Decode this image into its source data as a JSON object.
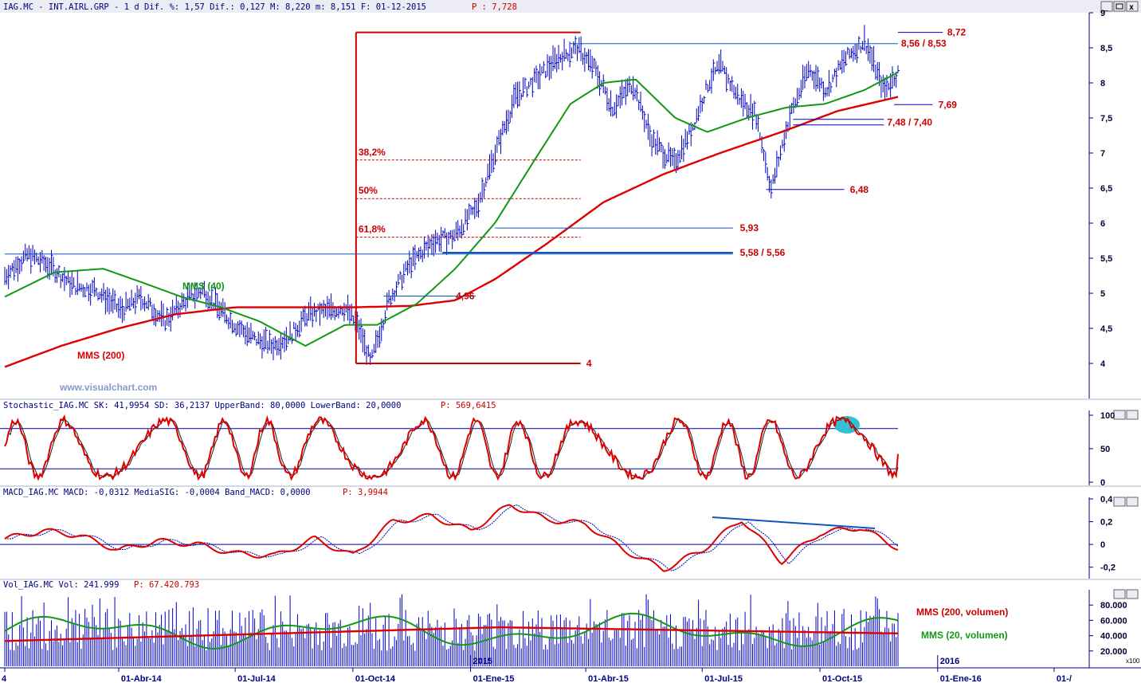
{
  "header": {
    "main": "IAG.MC - INT.AIRL.GRP - 1 d Dif. %: 1,57 Dif.: 0,127 M: 8,220 m: 8,151 F: 01-12-2015",
    "main_price": "P : 7,728",
    "stoch": "Stochastic_IAG.MC SK: 41,9954 SD: 36,2137 UpperBand: 80,0000 LowerBand: 20,0000",
    "stoch_p": "P: 569,6415",
    "macd": "MACD_IAG.MC MACD: -0,0312 MediaSIG: -0,0004 Band_MACD: 0,0000",
    "macd_p": "P: 3,9944",
    "vol": "Vol_IAG.MC Vol: 241.999",
    "vol_p": "P: 67.420.793"
  },
  "watermark": "www.visualchart.com",
  "colors": {
    "price": "#0000cc",
    "mms200": "#dd0000",
    "mms40": "#119911",
    "annotation": "#cc0000",
    "axis_text": "#000033",
    "blue_line": "#1155bb"
  },
  "chart_data": [
    {
      "type": "line",
      "title": "IAG.MC - INT.AIRL.GRP",
      "ylim": [
        3.5,
        9
      ],
      "yticks": [
        "4",
        "4,5",
        "5",
        "5,5",
        "6",
        "6,5",
        "7",
        "7,5",
        "8",
        "8,5",
        "9"
      ],
      "series": [
        {
          "name": "IAG.MC",
          "style": "ohlc-bars",
          "x": [
            "2014-01-02",
            "2014-01-20",
            "2014-02-05",
            "2014-02-25",
            "2014-03-14",
            "2014-04-03",
            "2014-04-18",
            "2014-05-07",
            "2014-05-26",
            "2014-06-06",
            "2014-06-20",
            "2014-07-01",
            "2014-07-16",
            "2014-07-30",
            "2014-08-13",
            "2014-08-27",
            "2014-09-10",
            "2014-09-25",
            "2014-10-06",
            "2014-10-15",
            "2014-10-29",
            "2014-11-14",
            "2014-12-03",
            "2014-12-18",
            "2015-01-05",
            "2015-01-20",
            "2015-02-05",
            "2015-02-24",
            "2015-03-10",
            "2015-03-25",
            "2015-04-08",
            "2015-04-22",
            "2015-05-08",
            "2015-05-22",
            "2015-06-09",
            "2015-06-23",
            "2015-07-06",
            "2015-07-15",
            "2015-07-29",
            "2015-08-12",
            "2015-08-24",
            "2015-09-07",
            "2015-09-22",
            "2015-10-06",
            "2015-10-21",
            "2015-11-05",
            "2015-11-20",
            "2015-12-01"
          ],
          "values": [
            5.25,
            5.55,
            5.4,
            5.1,
            5.05,
            4.75,
            4.95,
            4.6,
            4.95,
            5.05,
            4.75,
            4.55,
            4.35,
            4.25,
            4.4,
            4.7,
            4.75,
            4.8,
            4.5,
            4.0,
            4.9,
            5.4,
            5.75,
            5.8,
            6.2,
            7.0,
            7.8,
            8.1,
            8.35,
            8.5,
            8.2,
            7.65,
            8.0,
            7.2,
            6.85,
            7.35,
            8.0,
            8.25,
            7.8,
            7.55,
            6.48,
            7.5,
            8.2,
            7.9,
            8.35,
            8.6,
            7.9,
            8.15
          ]
        },
        {
          "name": "MMS (40)",
          "x": [
            "2014-01-02",
            "2014-02-10",
            "2014-03-20",
            "2014-04-20",
            "2014-05-20",
            "2014-06-20",
            "2014-07-20",
            "2014-08-25",
            "2014-09-25",
            "2014-10-20",
            "2014-11-20",
            "2014-12-20",
            "2015-01-20",
            "2015-02-20",
            "2015-03-20",
            "2015-04-15",
            "2015-05-10",
            "2015-06-10",
            "2015-07-05",
            "2015-08-05",
            "2015-09-05",
            "2015-10-05",
            "2015-11-05",
            "2015-12-01"
          ],
          "values": [
            4.95,
            5.3,
            5.35,
            5.15,
            4.95,
            4.8,
            4.6,
            4.25,
            4.55,
            4.55,
            4.85,
            5.35,
            6.0,
            6.9,
            7.7,
            8.0,
            8.05,
            7.5,
            7.3,
            7.5,
            7.65,
            7.7,
            7.9,
            8.15
          ]
        },
        {
          "name": "MMS (200)",
          "x": [
            "2014-01-02",
            "2014-02-15",
            "2014-04-01",
            "2014-05-15",
            "2014-07-01",
            "2014-08-15",
            "2014-10-01",
            "2014-11-15",
            "2014-12-20",
            "2015-01-20",
            "2015-03-01",
            "2015-04-15",
            "2015-06-01",
            "2015-07-15",
            "2015-09-01",
            "2015-10-15",
            "2015-12-01"
          ],
          "values": [
            3.95,
            4.25,
            4.5,
            4.7,
            4.8,
            4.8,
            4.8,
            4.82,
            4.9,
            5.2,
            5.7,
            6.3,
            6.7,
            7.0,
            7.3,
            7.6,
            7.8
          ]
        }
      ],
      "fibonacci": {
        "range_high_label": "",
        "range_low_label": "4",
        "levels": [
          {
            "label": "38,2%",
            "value": 6.9
          },
          {
            "label": "50%",
            "value": 6.35
          },
          {
            "label": "61,8%",
            "value": 5.8
          }
        ]
      },
      "annotations": [
        {
          "text": "8,72",
          "value": 8.72
        },
        {
          "text": "8,56 / 8,53",
          "value": 8.56
        },
        {
          "text": "7,69",
          "value": 7.69
        },
        {
          "text": "7,48 / 7,40",
          "value": 7.48
        },
        {
          "text": "6,48",
          "value": 6.48
        },
        {
          "text": "5,93",
          "value": 5.93
        },
        {
          "text": "5,58 / 5,56",
          "value": 5.58
        },
        {
          "text": "4,96",
          "value": 4.96
        },
        {
          "text": "4",
          "value": 4.0
        }
      ],
      "labels": {
        "mms40": "MMS (40)",
        "mms200": "MMS (200)"
      }
    },
    {
      "type": "line",
      "title": "Stochastic_IAG.MC",
      "ylim": [
        0,
        100
      ],
      "yticks": [
        "0",
        "50",
        "100"
      ],
      "bands": [
        20,
        80
      ],
      "series": [
        {
          "name": "SK",
          "last": 41.9954
        },
        {
          "name": "SD",
          "last": 36.2137
        }
      ]
    },
    {
      "type": "line",
      "title": "MACD_IAG.MC",
      "ylim": [
        -0.3,
        0.4
      ],
      "yticks": [
        "-0,2",
        "0",
        "0,2",
        "0,4"
      ],
      "series": [
        {
          "name": "MACD",
          "last": -0.0312,
          "x": [
            "2014-01-02",
            "2014-02-01",
            "2014-03-01",
            "2014-04-01",
            "2014-05-01",
            "2014-06-01",
            "2014-07-01",
            "2014-08-01",
            "2014-09-01",
            "2014-10-01",
            "2014-11-01",
            "2014-12-01",
            "2015-01-01",
            "2015-02-01",
            "2015-03-01",
            "2015-04-01",
            "2015-05-01",
            "2015-06-01",
            "2015-07-01",
            "2015-08-01",
            "2015-09-01",
            "2015-10-01",
            "2015-11-01",
            "2015-12-01"
          ],
          "values": [
            0.05,
            0.12,
            0.08,
            -0.05,
            0.03,
            0.0,
            -0.08,
            -0.1,
            0.05,
            -0.1,
            0.2,
            0.25,
            0.12,
            0.35,
            0.22,
            0.18,
            -0.05,
            -0.22,
            -0.05,
            0.22,
            -0.15,
            0.1,
            0.15,
            -0.03
          ]
        },
        {
          "name": "MediaSIG",
          "last": -0.0004
        }
      ]
    },
    {
      "type": "bar",
      "title": "Vol_IAG.MC",
      "ylim": [
        0,
        100000
      ],
      "yticks": [
        "20.000",
        "40.000",
        "60.000",
        "80.000"
      ],
      "unit_label": "x100",
      "series": [
        {
          "name": "Vol",
          "last": 241999
        },
        {
          "name": "MMS (200, volumen)"
        },
        {
          "name": "MMS (20, volumen)"
        }
      ]
    }
  ],
  "xaxis": {
    "ticks": [
      {
        "label": "4",
        "date": "2014-01-02"
      },
      {
        "label": "01-Abr-14",
        "date": "2014-04-01"
      },
      {
        "label": "01-Jul-14",
        "date": "2014-07-01"
      },
      {
        "label": "01-Oct-14",
        "date": "2014-10-01"
      },
      {
        "label": "01-Ene-15",
        "date": "2015-01-01"
      },
      {
        "label": "01-Abr-15",
        "date": "2015-04-01"
      },
      {
        "label": "01-Jul-15",
        "date": "2015-07-01"
      },
      {
        "label": "01-Oct-15",
        "date": "2015-10-01"
      },
      {
        "label": "01-Ene-16",
        "date": "2016-01-01"
      },
      {
        "label": "01-/",
        "date": "2016-04-01"
      }
    ],
    "year_marks": [
      {
        "label": "2015",
        "date": "2015-01-01"
      },
      {
        "label": "2016",
        "date": "2016-01-01"
      }
    ]
  },
  "vol_labels": {
    "mms200": "MMS (200, volumen)",
    "mms20": "MMS (20, volumen)"
  }
}
